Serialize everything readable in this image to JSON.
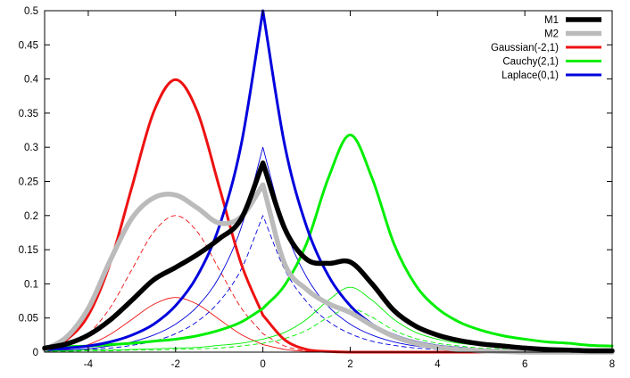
{
  "chart_data": {
    "type": "line",
    "title": "",
    "xlabel": "",
    "ylabel": "",
    "xlim": [
      -5,
      8
    ],
    "ylim": [
      0,
      0.5
    ],
    "x_ticks": [
      -4,
      -2,
      0,
      2,
      4,
      6,
      8
    ],
    "x_tick_labels": [
      "-4",
      "-2",
      "0",
      "2",
      "4",
      "6",
      "8"
    ],
    "y_ticks": [
      0,
      0.05,
      0.1,
      0.15,
      0.2,
      0.25,
      0.3,
      0.35,
      0.4,
      0.45,
      0.5
    ],
    "y_tick_labels": [
      "0",
      "0.05",
      "0.1",
      "0.15",
      "0.2",
      "0.25",
      "0.3",
      "0.35",
      "0.4",
      "0.45",
      "0.5"
    ],
    "grid": false,
    "legend_position": "top-right",
    "x": [
      -5,
      -4.5,
      -4,
      -3.5,
      -3,
      -2.5,
      -2,
      -1.5,
      -1,
      -0.5,
      0,
      0.5,
      1,
      1.5,
      2,
      2.5,
      3,
      3.5,
      4,
      4.5,
      5,
      5.5,
      6,
      6.5,
      7,
      7.5,
      8
    ],
    "series": [
      {
        "name": "M1",
        "color": "#000000",
        "style": "thick",
        "values": [
          0.006,
          0.012,
          0.025,
          0.047,
          0.076,
          0.106,
          0.124,
          0.143,
          0.166,
          0.195,
          0.277,
          0.181,
          0.136,
          0.13,
          0.132,
          0.1,
          0.061,
          0.038,
          0.025,
          0.017,
          0.012,
          0.009,
          0.006,
          0.004,
          0.003,
          0.002,
          0.002
        ]
      },
      {
        "name": "M2",
        "color": "#bbbbbb",
        "style": "thick",
        "values": [
          0.004,
          0.022,
          0.064,
          0.134,
          0.196,
          0.226,
          0.23,
          0.211,
          0.189,
          0.198,
          0.245,
          0.129,
          0.092,
          0.071,
          0.058,
          0.039,
          0.023,
          0.013,
          0.007,
          0.004,
          0.002,
          0.001,
          0,
          0,
          0,
          0,
          0
        ]
      },
      {
        "name": "Gaussian(-2,1)",
        "color": "#ee1111",
        "style": "medium",
        "values": [
          0.004,
          0.018,
          0.054,
          0.13,
          0.242,
          0.352,
          0.399,
          0.352,
          0.242,
          0.13,
          0.054,
          0.018,
          0.004,
          0.001,
          0,
          0,
          0,
          0,
          0,
          0,
          0,
          0,
          0,
          0,
          0,
          0,
          0
        ]
      },
      {
        "name": "Cauchy(2,1)",
        "color": "#00ee00",
        "style": "medium",
        "values": [
          0.006,
          0.008,
          0.009,
          0.011,
          0.013,
          0.016,
          0.019,
          0.024,
          0.032,
          0.044,
          0.064,
          0.098,
          0.159,
          0.255,
          0.318,
          0.255,
          0.159,
          0.098,
          0.064,
          0.044,
          0.032,
          0.024,
          0.019,
          0.015,
          0.013,
          0.01,
          0.009
        ]
      },
      {
        "name": "Laplace(0,1)",
        "color": "#0000dd",
        "style": "medium",
        "values": [
          0.003,
          0.006,
          0.009,
          0.015,
          0.025,
          0.041,
          0.068,
          0.112,
          0.184,
          0.303,
          0.5,
          0.303,
          0.184,
          0.112,
          0.068,
          0.041,
          0.025,
          0.015,
          0.009,
          0.006,
          0.003,
          0.002,
          0.001,
          0.001,
          0,
          0,
          0
        ]
      },
      {
        "color": "#ee1111",
        "style": "thin-dashed",
        "values": [
          0.002,
          0.009,
          0.027,
          0.065,
          0.121,
          0.176,
          0.2,
          0.176,
          0.121,
          0.065,
          0.027,
          0.009,
          0.002,
          0,
          0,
          0,
          0,
          0,
          0,
          0,
          0,
          0,
          0,
          0,
          0,
          0,
          0
        ]
      },
      {
        "color": "#ee1111",
        "style": "thin",
        "values": [
          0.001,
          0.004,
          0.011,
          0.026,
          0.048,
          0.07,
          0.08,
          0.07,
          0.048,
          0.026,
          0.011,
          0.004,
          0.001,
          0,
          0,
          0,
          0,
          0,
          0,
          0,
          0,
          0,
          0,
          0,
          0,
          0,
          0
        ]
      },
      {
        "color": "#0000dd",
        "style": "thin-dashed",
        "values": [
          0.001,
          0.002,
          0.004,
          0.006,
          0.01,
          0.016,
          0.027,
          0.045,
          0.074,
          0.121,
          0.2,
          0.121,
          0.074,
          0.045,
          0.027,
          0.016,
          0.01,
          0.006,
          0.004,
          0.002,
          0.001,
          0.001,
          0,
          0,
          0,
          0,
          0
        ]
      },
      {
        "color": "#0000dd",
        "style": "thin",
        "values": [
          0.002,
          0.003,
          0.005,
          0.009,
          0.015,
          0.025,
          0.041,
          0.067,
          0.11,
          0.182,
          0.3,
          0.182,
          0.11,
          0.067,
          0.041,
          0.025,
          0.015,
          0.009,
          0.005,
          0.003,
          0.002,
          0.001,
          0.001,
          0,
          0,
          0,
          0
        ]
      },
      {
        "color": "#00ee00",
        "style": "thin-dashed",
        "values": [
          0.001,
          0.001,
          0.002,
          0.002,
          0.003,
          0.003,
          0.004,
          0.005,
          0.006,
          0.009,
          0.013,
          0.02,
          0.032,
          0.051,
          0.064,
          0.051,
          0.032,
          0.02,
          0.013,
          0.009,
          0.006,
          0.005,
          0.004,
          0.003,
          0.003,
          0.002,
          0.002
        ]
      },
      {
        "color": "#00ee00",
        "style": "thin",
        "values": [
          0.002,
          0.002,
          0.003,
          0.003,
          0.004,
          0.005,
          0.006,
          0.007,
          0.01,
          0.013,
          0.019,
          0.029,
          0.048,
          0.076,
          0.095,
          0.076,
          0.048,
          0.029,
          0.019,
          0.013,
          0.01,
          0.007,
          0.006,
          0.005,
          0.004,
          0.003,
          0.003
        ]
      }
    ]
  }
}
